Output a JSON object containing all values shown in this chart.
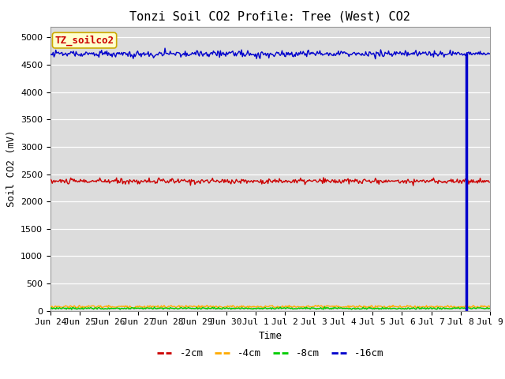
{
  "title": "Tonzi Soil CO2 Profile: Tree (West) CO2",
  "ylabel": "Soil CO2 (mV)",
  "xlabel": "Time",
  "legend_label": "TZ_soilco2",
  "bg_color": "#dcdcdc",
  "ylim": [
    0,
    5200
  ],
  "yticks": [
    0,
    500,
    1000,
    1500,
    2000,
    2500,
    3000,
    3500,
    4000,
    4500,
    5000
  ],
  "series": {
    "-2cm": {
      "color": "#cc0000",
      "mean": 2370,
      "noise": 25,
      "seed": 10
    },
    "-4cm": {
      "color": "#ffaa00",
      "mean": 75,
      "noise": 12,
      "seed": 20
    },
    "-8cm": {
      "color": "#00cc00",
      "mean": 45,
      "noise": 8,
      "seed": 30
    },
    "-16cm": {
      "color": "#0000cc",
      "mean": 4700,
      "noise": 30,
      "seed": 40
    }
  },
  "n_points": 500,
  "drop_index": 472,
  "xtick_labels": [
    "Jun 24",
    "Jun 25",
    "Jun 26",
    "Jun 27",
    "Jun 28",
    "Jun 29",
    "Jun 30",
    "Jul 1",
    "Jul 2",
    "Jul 3",
    "Jul 4",
    "Jul 5",
    "Jul 6",
    "Jul 7",
    "Jul 8",
    "Jul 9"
  ],
  "legend_box_color": "#ffffcc",
  "legend_box_edge": "#ccaa00",
  "legend_text_color": "#cc0000",
  "title_fontsize": 11,
  "axis_label_fontsize": 9,
  "tick_fontsize": 8
}
